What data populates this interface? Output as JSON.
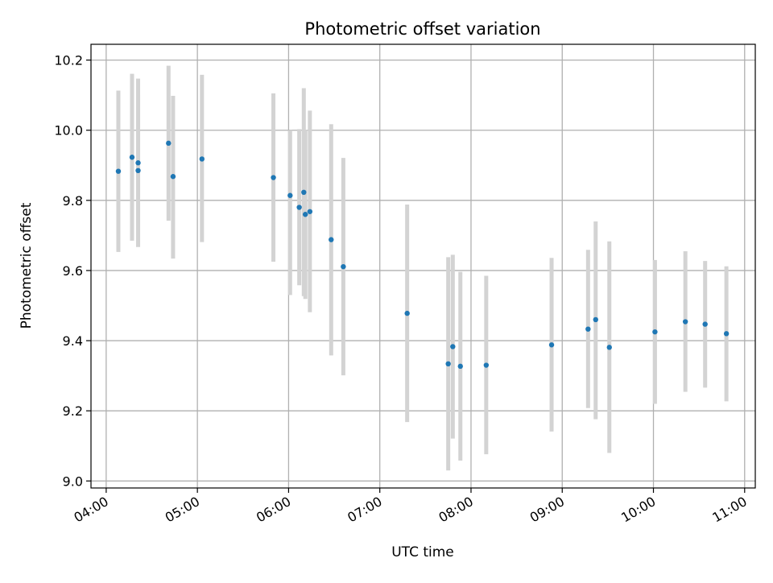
{
  "chart_data": {
    "type": "scatter",
    "title": "Photometric offset variation",
    "xlabel": "UTC time",
    "ylabel": "Photometric offset",
    "xlim": [
      "03:50",
      "11:07"
    ],
    "ylim": [
      8.98,
      10.245
    ],
    "grid": true,
    "x_ticks": [
      "04:00",
      "05:00",
      "06:00",
      "07:00",
      "08:00",
      "09:00",
      "10:00",
      "11:00"
    ],
    "y_ticks": [
      9.0,
      9.2,
      9.4,
      9.6,
      9.8,
      10.0,
      10.2
    ],
    "y_tick_labels": [
      "9.0",
      "9.2",
      "9.4",
      "9.6",
      "9.8",
      "10.0",
      "10.2"
    ],
    "colors": {
      "point": "#1f77b4",
      "error_bar": "#d3d3d3",
      "grid": "#b0b0b0"
    },
    "series": [
      {
        "points": [
          {
            "x": "04:08",
            "y": 9.883,
            "ylo": 9.653,
            "yhi": 10.113
          },
          {
            "x": "04:17",
            "y": 9.923,
            "ylo": 9.685,
            "yhi": 10.161
          },
          {
            "x": "04:21",
            "y": 9.885,
            "ylo": 9.668,
            "yhi": 10.102
          },
          {
            "x": "04:21",
            "y": 9.907,
            "ylo": 9.667,
            "yhi": 10.147
          },
          {
            "x": "04:41",
            "y": 9.963,
            "ylo": 9.742,
            "yhi": 10.184
          },
          {
            "x": "04:44",
            "y": 9.868,
            "ylo": 9.634,
            "yhi": 10.098
          },
          {
            "x": "05:03",
            "y": 9.918,
            "ylo": 9.681,
            "yhi": 10.158
          },
          {
            "x": "05:50",
            "y": 9.865,
            "ylo": 9.625,
            "yhi": 10.105
          },
          {
            "x": "06:01",
            "y": 9.814,
            "ylo": 9.53,
            "yhi": 10.0
          },
          {
            "x": "06:07",
            "y": 9.78,
            "ylo": 9.558,
            "yhi": 10.003
          },
          {
            "x": "06:10",
            "y": 9.823,
            "ylo": 9.527,
            "yhi": 10.12
          },
          {
            "x": "06:11",
            "y": 9.76,
            "ylo": 9.519,
            "yhi": 10.001
          },
          {
            "x": "06:14",
            "y": 9.768,
            "ylo": 9.481,
            "yhi": 10.056
          },
          {
            "x": "06:28",
            "y": 9.688,
            "ylo": 9.358,
            "yhi": 10.017
          },
          {
            "x": "06:36",
            "y": 9.611,
            "ylo": 9.301,
            "yhi": 9.921
          },
          {
            "x": "07:18",
            "y": 9.478,
            "ylo": 9.168,
            "yhi": 9.788
          },
          {
            "x": "07:45",
            "y": 9.334,
            "ylo": 9.03,
            "yhi": 9.638
          },
          {
            "x": "07:48",
            "y": 9.383,
            "ylo": 9.121,
            "yhi": 9.645
          },
          {
            "x": "07:53",
            "y": 9.327,
            "ylo": 9.058,
            "yhi": 9.596
          },
          {
            "x": "08:10",
            "y": 9.33,
            "ylo": 9.076,
            "yhi": 9.585
          },
          {
            "x": "08:53",
            "y": 9.388,
            "ylo": 9.141,
            "yhi": 9.636
          },
          {
            "x": "09:17",
            "y": 9.433,
            "ylo": 9.208,
            "yhi": 9.659
          },
          {
            "x": "09:22",
            "y": 9.46,
            "ylo": 9.176,
            "yhi": 9.74
          },
          {
            "x": "09:31",
            "y": 9.381,
            "ylo": 9.08,
            "yhi": 9.683
          },
          {
            "x": "10:01",
            "y": 9.425,
            "ylo": 9.22,
            "yhi": 9.63
          },
          {
            "x": "10:21",
            "y": 9.454,
            "ylo": 9.254,
            "yhi": 9.655
          },
          {
            "x": "10:34",
            "y": 9.447,
            "ylo": 9.266,
            "yhi": 9.627
          },
          {
            "x": "10:48",
            "y": 9.42,
            "ylo": 9.227,
            "yhi": 9.612
          }
        ]
      }
    ]
  }
}
